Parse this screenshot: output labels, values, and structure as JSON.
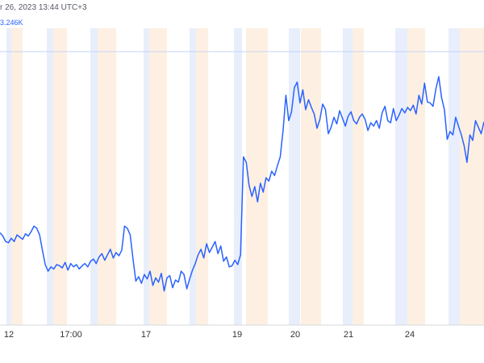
{
  "header": {
    "timestamp": "r 26, 2023 13:44 UTC+3",
    "price_label": "3.246K"
  },
  "colors": {
    "line": "#2962ff",
    "band_blue": "#e8eefb",
    "band_orange": "#fdf0e2",
    "reference_line": "#c5d3f7",
    "axis_line": "#d5d8de",
    "tick_text": "#333333"
  },
  "chart_data": {
    "type": "line",
    "x_tick_labels": [
      "12",
      "17:00",
      "17",
      "19",
      "20",
      "21",
      "24"
    ],
    "series": [
      {
        "name": "",
        "values": [
          234,
          231,
          226,
          225,
          229,
          226,
          232,
          230,
          228,
          233,
          231,
          235,
          240,
          238,
          232,
          218,
          205,
          199,
          203,
          201,
          205,
          204,
          202,
          207,
          200,
          206,
          203,
          205,
          201,
          204,
          206,
          203,
          208,
          210,
          206,
          212,
          215,
          209,
          214,
          219,
          211,
          216,
          213,
          218,
          240,
          238,
          232,
          210,
          190,
          194,
          188,
          196,
          192,
          199,
          186,
          193,
          189,
          197,
          181,
          193,
          195,
          184,
          191,
          189,
          199,
          196,
          183,
          192,
          200,
          206,
          214,
          219,
          211,
          224,
          216,
          221,
          226,
          215,
          222,
          208,
          212,
          203,
          204,
          209,
          205,
          214,
          303,
          298,
          277,
          267,
          276,
          262,
          279,
          271,
          284,
          281,
          290,
          286,
          295,
          303,
          327,
          359,
          336,
          344,
          366,
          371,
          352,
          364,
          346,
          355,
          348,
          342,
          329,
          337,
          351,
          346,
          324,
          330,
          339,
          333,
          345,
          338,
          331,
          340,
          344,
          336,
          333,
          339,
          342,
          337,
          327,
          334,
          331,
          336,
          329,
          343,
          349,
          336,
          334,
          347,
          336,
          341,
          347,
          343,
          348,
          345,
          350,
          342,
          359,
          351,
          370,
          353,
          352,
          349,
          365,
          376,
          357,
          346,
          319,
          326,
          323,
          339,
          331,
          323,
          313,
          298,
          323,
          318,
          336,
          330,
          324,
          335
        ]
      }
    ],
    "ylim": [
      150,
      420
    ],
    "grid": false
  }
}
